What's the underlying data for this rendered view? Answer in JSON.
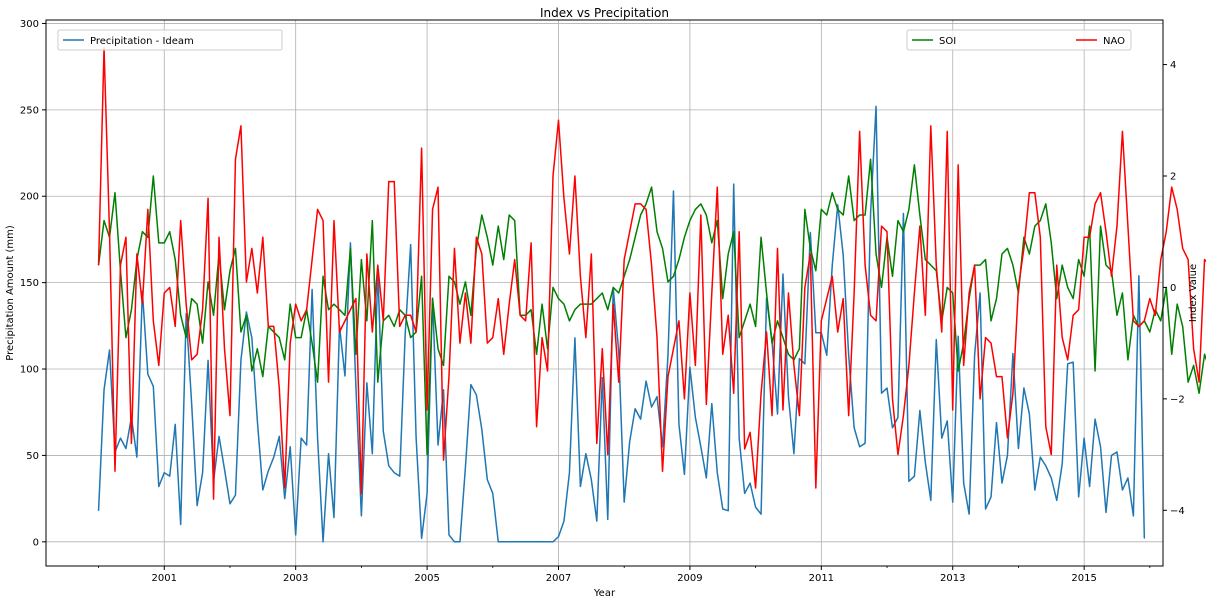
{
  "chart_data": {
    "type": "line",
    "title": "Index vs Precipitation",
    "xlabel": "Year",
    "ylabel": "Precipitation Amount (mm)",
    "ylabel_right": "Index Value",
    "grid": true,
    "x_range": [
      1999.2,
      2016.2
    ],
    "x_ticks": [
      2001,
      2003,
      2005,
      2007,
      2009,
      2011,
      2013,
      2015
    ],
    "ylim_left": [
      -14,
      302
    ],
    "yticks_left": [
      0,
      50,
      100,
      150,
      200,
      250,
      300
    ],
    "ylim_right": [
      -5.0,
      4.8
    ],
    "yticks_right": [
      -4,
      -2,
      0,
      2,
      4
    ],
    "legend_left": {
      "placement": "upper left",
      "entries": [
        "Precipitation - Ideam"
      ]
    },
    "legend_right": {
      "placement": "upper right",
      "entries": [
        "SOI",
        "NAO"
      ]
    },
    "series": [
      {
        "name": "Precipitation - Ideam",
        "axis": "left",
        "color": "#1f77b4",
        "x_start": 2000.0,
        "x_step": 0.08333,
        "values": [
          18,
          88,
          111,
          52,
          60,
          54,
          72,
          49,
          145,
          97,
          90,
          32,
          40,
          38,
          68,
          10,
          132,
          80,
          21,
          40,
          105,
          35,
          61,
          42,
          22,
          27,
          105,
          133,
          118,
          70,
          30,
          41,
          49,
          61,
          25,
          55,
          4,
          60,
          56,
          146,
          60,
          0,
          51,
          14,
          125,
          96,
          173,
          90,
          15,
          92,
          51,
          157,
          64,
          44,
          40,
          38,
          120,
          172,
          60,
          2,
          28,
          141,
          56,
          88,
          4,
          0,
          0,
          43,
          91,
          85,
          65,
          36,
          28,
          0,
          0,
          0,
          0,
          0,
          0,
          0,
          0,
          0,
          0,
          0,
          3,
          12,
          40,
          118,
          32,
          51,
          36,
          12,
          95,
          13,
          147,
          110,
          23,
          58,
          77,
          71,
          93,
          78,
          84,
          55,
          108,
          203,
          68,
          39,
          101,
          72,
          55,
          37,
          80,
          40,
          19,
          18,
          207,
          60,
          28,
          34,
          20,
          16,
          141,
          116,
          74,
          155,
          84,
          51,
          106,
          103,
          179,
          121,
          121,
          108,
          160,
          195,
          166,
          108,
          66,
          55,
          57,
          190,
          252,
          86,
          89,
          66,
          72,
          190,
          35,
          38,
          76,
          46,
          24,
          117,
          60,
          70,
          23,
          119,
          34,
          16,
          108,
          144,
          19,
          26,
          69,
          34,
          50,
          109,
          54,
          89,
          74,
          30,
          49,
          44,
          37,
          24,
          45,
          103,
          104,
          26,
          60,
          32,
          71,
          55,
          17,
          50,
          52,
          30,
          37,
          15,
          154,
          2
        ]
      },
      {
        "name": "SOI",
        "axis": "right",
        "color": "#008000",
        "x_start": 2000.0,
        "x_step": 0.08333,
        "values": [
          0.4,
          1.2,
          0.9,
          1.7,
          0.3,
          -0.9,
          -0.4,
          0.5,
          1.0,
          0.9,
          2.0,
          0.8,
          0.8,
          1.0,
          0.5,
          -0.5,
          -0.9,
          -0.2,
          -0.3,
          -1.0,
          0.1,
          -0.5,
          0.6,
          -0.4,
          0.3,
          0.7,
          -0.8,
          -0.5,
          -1.5,
          -1.1,
          -1.6,
          -0.7,
          -0.8,
          -0.9,
          -1.3,
          -0.3,
          -0.9,
          -0.9,
          -0.4,
          -1.0,
          -1.7,
          0.2,
          -0.4,
          -0.3,
          -0.4,
          -0.5,
          0.7,
          -1.2,
          0.5,
          -0.6,
          1.2,
          -1.7,
          -0.6,
          -0.5,
          -0.7,
          -0.4,
          -0.5,
          -0.9,
          -0.8,
          0.2,
          -3.0,
          -0.2,
          -1.1,
          -1.4,
          0.2,
          0.1,
          -0.3,
          0.1,
          -0.5,
          0.7,
          1.3,
          0.9,
          0.4,
          1.1,
          0.5,
          1.3,
          1.2,
          -0.5,
          -0.5,
          -0.4,
          -1.2,
          -0.3,
          -1.1,
          0.0,
          -0.2,
          -0.3,
          -0.6,
          -0.4,
          -0.3,
          -0.3,
          -0.3,
          -0.2,
          -0.1,
          -0.4,
          0.0,
          -0.1,
          0.2,
          0.5,
          0.9,
          1.3,
          1.5,
          1.8,
          1.0,
          0.7,
          0.1,
          0.2,
          0.5,
          0.9,
          1.2,
          1.4,
          1.5,
          1.3,
          0.8,
          1.2,
          -0.2,
          0.6,
          1.0,
          -0.9,
          -0.6,
          -0.3,
          -0.7,
          0.9,
          -0.1,
          -1.0,
          -0.6,
          -0.9,
          -1.2,
          -1.3,
          -1.1,
          1.4,
          0.7,
          0.3,
          1.4,
          1.3,
          1.7,
          1.4,
          1.3,
          2.0,
          1.2,
          1.3,
          1.3,
          2.3,
          0.6,
          0.0,
          0.9,
          0.2,
          1.2,
          1.0,
          1.4,
          2.2,
          1.3,
          0.5,
          0.4,
          0.3,
          -0.6,
          0.0,
          -0.1,
          -1.5,
          -1.0,
          -0.2,
          0.4,
          0.4,
          0.5,
          -0.6,
          -0.2,
          0.6,
          0.7,
          0.4,
          -0.1,
          0.9,
          0.6,
          1.1,
          1.2,
          1.5,
          0.8,
          -0.2,
          0.4,
          0.0,
          -0.2,
          0.5,
          0.2,
          1.1,
          -1.5,
          1.1,
          0.4,
          0.3,
          -0.5,
          -0.1,
          -1.3,
          -0.5,
          -0.7,
          -0.6,
          -0.8,
          -0.4,
          -0.6,
          0.0,
          -1.2,
          -0.3,
          -0.7,
          -1.7,
          -1.4,
          -1.9,
          -1.2,
          -1.5,
          -1.6,
          -0.9,
          -1.0
        ]
      },
      {
        "name": "NAO",
        "axis": "right",
        "color": "#ff0000",
        "x_start": 2000.0,
        "x_step": 0.08333,
        "values": [
          0.4,
          4.3,
          1.0,
          -3.3,
          0.4,
          0.9,
          -2.8,
          0.6,
          -0.3,
          1.4,
          -0.6,
          -1.4,
          -0.1,
          0.0,
          -0.7,
          1.2,
          -0.3,
          -1.3,
          -1.2,
          -0.4,
          1.6,
          -3.8,
          0.9,
          -1.1,
          -2.3,
          2.3,
          2.9,
          0.1,
          0.7,
          -0.1,
          0.9,
          -0.7,
          -0.7,
          -1.8,
          -3.6,
          -1.0,
          -0.3,
          -0.6,
          -0.4,
          0.5,
          1.4,
          1.2,
          -1.7,
          1.2,
          -0.8,
          -0.6,
          -0.4,
          -0.2,
          -3.7,
          0.6,
          -0.8,
          0.4,
          -0.6,
          1.9,
          1.9,
          -0.7,
          -0.5,
          -0.5,
          -0.8,
          2.5,
          -2.2,
          1.4,
          1.8,
          -3.1,
          -1.6,
          0.7,
          -1.0,
          -0.1,
          -1.0,
          0.9,
          0.6,
          -1.0,
          -0.9,
          -0.2,
          -1.2,
          -0.3,
          0.5,
          -0.5,
          -0.6,
          0.8,
          -2.5,
          -0.9,
          -1.5,
          2.0,
          3.0,
          1.6,
          0.6,
          2.0,
          0.2,
          -0.9,
          0.6,
          -2.8,
          -1.1,
          -3.0,
          -0.3,
          -1.7,
          0.5,
          1.0,
          1.5,
          1.5,
          1.4,
          0.4,
          -0.9,
          -3.3,
          -1.6,
          -1.1,
          -0.6,
          -2.0,
          -0.1,
          -1.4,
          1.3,
          -2.1,
          -0.1,
          1.8,
          -1.2,
          -0.5,
          -1.9,
          1.0,
          -2.9,
          -2.6,
          -3.6,
          -1.9,
          -0.8,
          -2.3,
          0.7,
          -2.2,
          -0.1,
          -1.4,
          -2.3,
          0.0,
          0.6,
          -3.6,
          -0.6,
          -0.2,
          0.2,
          -0.8,
          -0.2,
          -2.3,
          -0.1,
          2.8,
          0.4,
          -0.5,
          -0.6,
          1.1,
          1.0,
          -2.0,
          -3.0,
          -2.3,
          -1.4,
          -0.1,
          1.1,
          -0.5,
          2.9,
          0.4,
          -0.8,
          2.8,
          -2.2,
          2.2,
          -1.4,
          -0.1,
          0.4,
          -2.0,
          -0.9,
          -1.0,
          -1.6,
          -1.6,
          -2.7,
          -1.9,
          0.0,
          0.7,
          1.7,
          1.7,
          0.9,
          -2.5,
          -3.0,
          0.4,
          -0.9,
          -1.3,
          -0.5,
          -0.4,
          0.9,
          0.9,
          1.5,
          1.7,
          1.0,
          0.2,
          1.1,
          2.8,
          1.1,
          -0.6,
          -0.7,
          -0.6,
          -0.2,
          -0.5,
          0.5,
          1.0,
          1.8,
          1.4,
          0.7,
          0.5,
          -1.1,
          -1.7,
          0.5,
          0.4,
          0.3,
          -0.3,
          -0.5,
          -0.3,
          -1.2,
          0.8,
          0.5,
          -1.2,
          -1.9,
          -0.8,
          -1.7,
          -1.4,
          -2.0,
          1.9,
          -1.0,
          2.2,
          0.4,
          1.4,
          1.7,
          -0.9,
          -0.2,
          1.4
        ]
      }
    ]
  }
}
